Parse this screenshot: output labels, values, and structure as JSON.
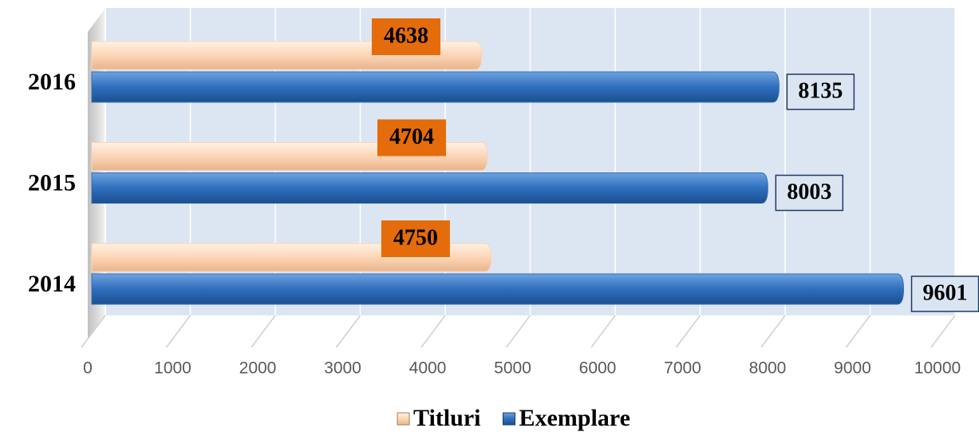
{
  "chart_data": {
    "type": "bar",
    "orientation": "horizontal",
    "categories": [
      "2014",
      "2015",
      "2016"
    ],
    "series": [
      {
        "name": "Titluri",
        "color": "#fcd5b5",
        "values": [
          4750,
          4704,
          4638
        ]
      },
      {
        "name": "Exemplare",
        "color": "#2e6fbd",
        "values": [
          9601,
          8003,
          8135
        ]
      }
    ],
    "xlim": [
      0,
      10000
    ],
    "xticks": [
      0,
      1000,
      2000,
      3000,
      4000,
      5000,
      6000,
      7000,
      8000,
      9000,
      10000
    ],
    "grid": true,
    "legend": "bottom"
  }
}
